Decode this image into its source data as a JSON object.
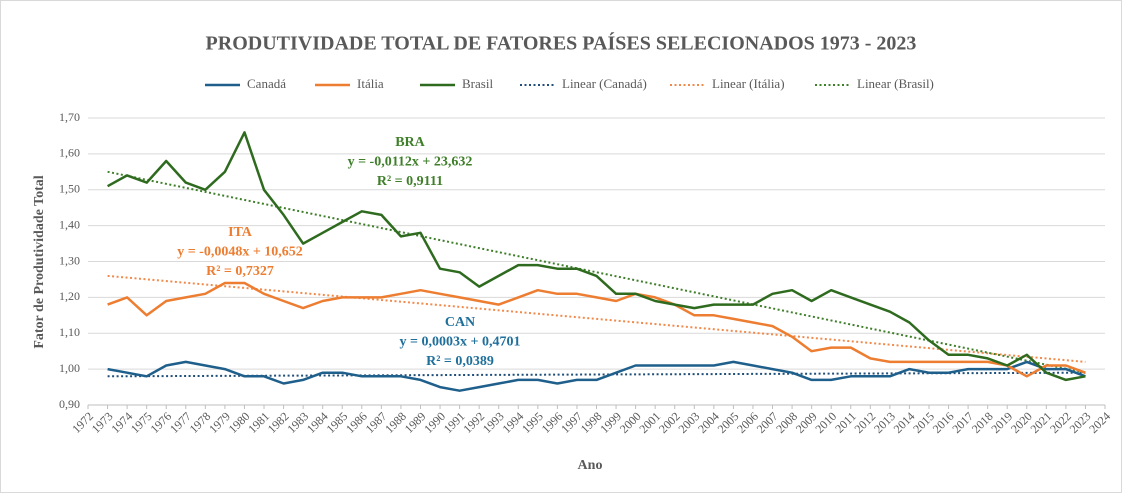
{
  "chart_data": {
    "type": "line",
    "title": "PRODUTIVIDADE TOTAL DE FATORES PAÍSES SELECIONADOS 1973 - 2023",
    "x_label": "Ano",
    "y_label": "Fator de Produtividade Total",
    "x": [
      1973,
      1974,
      1975,
      1976,
      1977,
      1978,
      1979,
      1980,
      1981,
      1982,
      1983,
      1984,
      1985,
      1986,
      1987,
      1988,
      1989,
      1990,
      1991,
      1992,
      1993,
      1994,
      1995,
      1996,
      1997,
      1998,
      1999,
      2000,
      2001,
      2002,
      2003,
      2004,
      2005,
      2006,
      2007,
      2008,
      2009,
      2010,
      2011,
      2012,
      2013,
      2014,
      2015,
      2016,
      2017,
      2018,
      2019,
      2020,
      2021,
      2022,
      2023
    ],
    "series": [
      {
        "name": "Canadá",
        "color": "#1f5f8b",
        "values": [
          1.0,
          0.99,
          0.98,
          1.01,
          1.02,
          1.01,
          1.0,
          0.98,
          0.98,
          0.96,
          0.97,
          0.99,
          0.99,
          0.98,
          0.98,
          0.98,
          0.97,
          0.95,
          0.94,
          0.95,
          0.96,
          0.97,
          0.97,
          0.96,
          0.97,
          0.97,
          0.99,
          1.01,
          1.01,
          1.01,
          1.01,
          1.01,
          1.02,
          1.01,
          1.0,
          0.99,
          0.97,
          0.97,
          0.98,
          0.98,
          0.98,
          1.0,
          0.99,
          0.99,
          1.0,
          1.0,
          1.0,
          1.02,
          1.0,
          1.0,
          0.98
        ]
      },
      {
        "name": "Itália",
        "color": "#ed7d31",
        "values": [
          1.18,
          1.2,
          1.15,
          1.19,
          1.2,
          1.21,
          1.24,
          1.24,
          1.21,
          1.19,
          1.17,
          1.19,
          1.2,
          1.2,
          1.2,
          1.21,
          1.22,
          1.21,
          1.2,
          1.19,
          1.18,
          1.2,
          1.22,
          1.21,
          1.21,
          1.2,
          1.19,
          1.21,
          1.2,
          1.18,
          1.15,
          1.15,
          1.14,
          1.13,
          1.12,
          1.09,
          1.05,
          1.06,
          1.06,
          1.03,
          1.02,
          1.02,
          1.02,
          1.02,
          1.02,
          1.02,
          1.01,
          0.98,
          1.01,
          1.01,
          0.99
        ]
      },
      {
        "name": "Brasil",
        "color": "#2e6b1f",
        "values": [
          1.51,
          1.54,
          1.52,
          1.58,
          1.52,
          1.5,
          1.55,
          1.66,
          1.5,
          1.43,
          1.35,
          1.38,
          1.41,
          1.44,
          1.43,
          1.37,
          1.38,
          1.28,
          1.27,
          1.23,
          1.26,
          1.29,
          1.29,
          1.28,
          1.28,
          1.26,
          1.21,
          1.21,
          1.19,
          1.18,
          1.17,
          1.18,
          1.18,
          1.18,
          1.21,
          1.22,
          1.19,
          1.22,
          1.2,
          1.18,
          1.16,
          1.13,
          1.08,
          1.04,
          1.04,
          1.03,
          1.01,
          1.04,
          0.99,
          0.97,
          0.98
        ]
      },
      {
        "name": "Linear (Canadá)",
        "color": "#1f4e79",
        "dotted": true,
        "x": [
          1973,
          2023
        ],
        "values": [
          0.98,
          0.99
        ]
      },
      {
        "name": "Linear (Itália)",
        "color": "#f08a4b",
        "dotted": true,
        "x": [
          1973,
          2023
        ],
        "values": [
          1.26,
          1.02
        ]
      },
      {
        "name": "Linear (Brasil)",
        "color": "#3f7f2a",
        "dotted": true,
        "x": [
          1973,
          2023
        ],
        "values": [
          1.55,
          0.99
        ]
      }
    ],
    "annotations": [
      {
        "lines": [
          "BRA",
          "y = -0,0112x + 23,632",
          "R² = 0,9111"
        ],
        "color": "#3f7f2a"
      },
      {
        "lines": [
          "ITA",
          "y = -0,0048x + 10,652",
          "R² = 0,7327"
        ],
        "color": "#ed7d31"
      },
      {
        "lines": [
          "CAN",
          "y = 0,0003x + 0,4701",
          "R² = 0,0389"
        ],
        "color": "#1f6f9b"
      }
    ],
    "xlim": [
      1972,
      2024
    ],
    "xticks": [
      1972,
      1973,
      1974,
      1975,
      1976,
      1977,
      1978,
      1979,
      1980,
      1981,
      1982,
      1983,
      1984,
      1985,
      1986,
      1987,
      1988,
      1989,
      1990,
      1991,
      1992,
      1993,
      1994,
      1995,
      1996,
      1997,
      1998,
      1999,
      2000,
      2001,
      2002,
      2003,
      2004,
      2005,
      2006,
      2007,
      2008,
      2009,
      2010,
      2011,
      2012,
      2013,
      2014,
      2015,
      2016,
      2017,
      2018,
      2019,
      2020,
      2021,
      2022,
      2023,
      2024
    ],
    "ylim": [
      0.9,
      1.7
    ],
    "yticks": [
      {
        "value": 0.9,
        "label": "0,90"
      },
      {
        "value": 1.0,
        "label": "1,00"
      },
      {
        "value": 1.1,
        "label": "1,10"
      },
      {
        "value": 1.2,
        "label": "1,20"
      },
      {
        "value": 1.3,
        "label": "1,30"
      },
      {
        "value": 1.4,
        "label": "1,40"
      },
      {
        "value": 1.5,
        "label": "1,50"
      },
      {
        "value": 1.6,
        "label": "1,60"
      },
      {
        "value": 1.7,
        "label": "1,70"
      }
    ],
    "grid": true,
    "legend": "top"
  }
}
